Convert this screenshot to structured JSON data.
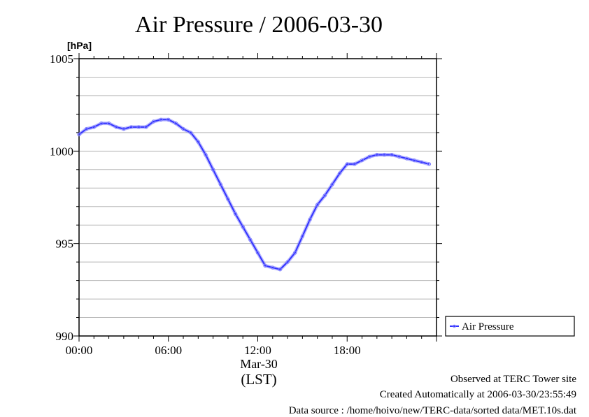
{
  "chart_data": {
    "type": "line",
    "title": "Air Pressure / 2006-03-30",
    "ylabel": "[hPa]",
    "xlabel": "(LST)",
    "x_sublabel": "Mar-30",
    "ylim": [
      990,
      1005
    ],
    "xlim_hours": [
      0,
      24
    ],
    "y_ticks": [
      "990",
      "995",
      "1000",
      "1005"
    ],
    "x_ticks": [
      "00:00",
      "06:00",
      "12:00",
      "18:00"
    ],
    "grid": true,
    "legend_position": "right",
    "series": [
      {
        "name": "Air Pressure",
        "color": "#3333ff",
        "marker_color": "#8080ff",
        "x": [
          0.0,
          0.5,
          1.0,
          1.5,
          2.0,
          2.5,
          3.0,
          3.5,
          4.0,
          4.5,
          5.0,
          5.5,
          6.0,
          6.5,
          7.0,
          7.5,
          8.0,
          8.5,
          9.0,
          9.5,
          10.0,
          10.5,
          11.0,
          11.5,
          12.0,
          12.5,
          13.0,
          13.5,
          14.0,
          14.5,
          15.0,
          15.5,
          16.0,
          16.5,
          17.0,
          17.5,
          18.0,
          18.5,
          19.0,
          19.5,
          20.0,
          20.5,
          21.0,
          21.5,
          22.0,
          22.5,
          23.0,
          23.5
        ],
        "y": [
          1000.9,
          1001.2,
          1001.3,
          1001.5,
          1001.5,
          1001.3,
          1001.2,
          1001.3,
          1001.3,
          1001.3,
          1001.6,
          1001.7,
          1001.7,
          1001.5,
          1001.2,
          1001.0,
          1000.5,
          999.8,
          999.0,
          998.2,
          997.4,
          996.6,
          995.9,
          995.2,
          994.5,
          993.8,
          993.7,
          993.6,
          994.0,
          994.5,
          995.4,
          996.3,
          997.1,
          997.6,
          998.2,
          998.8,
          999.3,
          999.3,
          999.5,
          999.7,
          999.8,
          999.8,
          999.8,
          999.7,
          999.6,
          999.5,
          999.4,
          999.3
        ]
      }
    ]
  },
  "footer": {
    "line1": "Observed at TERC Tower site",
    "line2": "Created Automatically at 2006-03-30/23:55:49",
    "line3": "Data source : /home/hoivo/new/TERC-data/sorted  data/MET.10s.dat"
  }
}
